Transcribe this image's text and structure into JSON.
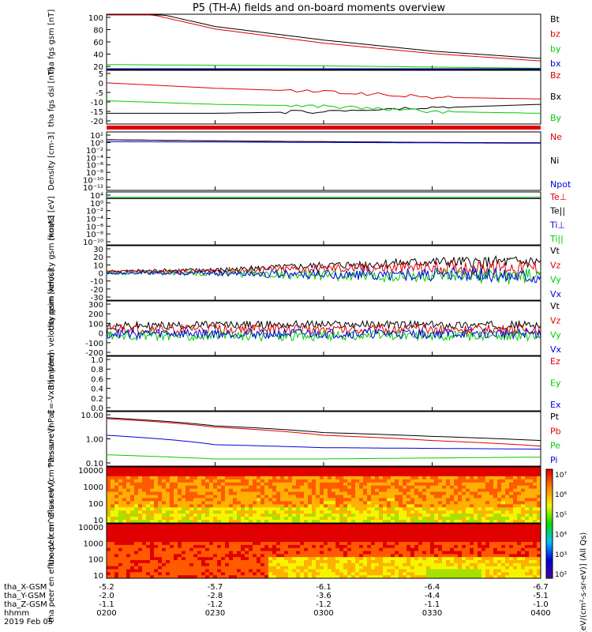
{
  "title": "P5 (TH-A) fields and on-board moments overview",
  "colors": {
    "black": "#000000",
    "red": "#e00000",
    "green": "#00cc00",
    "blue": "#0000e0"
  },
  "colorbar": {
    "ticks": [
      "10²",
      "10³",
      "10⁴",
      "10⁵",
      "10⁶",
      "10⁷"
    ],
    "label": "[eV/(cm²-s-sr-eV)] (All Qs)"
  },
  "footer": {
    "rows": [
      {
        "label": "tha_X-GSM",
        "values": [
          "-5.2",
          "-5.7",
          "-6.1",
          "-6.4",
          "-6.7"
        ]
      },
      {
        "label": "tha_Y-GSM",
        "values": [
          "-2.0",
          "-2.8",
          "-3.6",
          "-4.4",
          "-5.1"
        ]
      },
      {
        "label": "tha_Z-GSM",
        "values": [
          "-1.1",
          "-1.2",
          "-1.2",
          "-1.1",
          "-1.0"
        ]
      },
      {
        "label": "hhmm",
        "values": [
          "0200",
          "0230",
          "0300",
          "0330",
          "0400"
        ]
      }
    ],
    "date": "2019 Feb 05"
  },
  "chart_data": [
    {
      "type": "line",
      "ylabel": "tha fgs gsm [nT]",
      "ylim": [
        10,
        100
      ],
      "tick_labels": [
        "100",
        "80",
        "60",
        "40",
        "20"
      ],
      "x": [
        "0200",
        "0230",
        "0300",
        "0330",
        "0400"
      ],
      "series": [
        {
          "name": "Bt",
          "color": "black",
          "values": [
            120,
            80,
            58,
            40,
            28
          ]
        },
        {
          "name": "bz",
          "color": "red",
          "values": [
            116,
            76,
            53,
            36,
            24
          ]
        },
        {
          "name": "by",
          "color": "green",
          "values": [
            18,
            17,
            16,
            14,
            12
          ]
        },
        {
          "name": "bx",
          "color": "blue",
          "values": [
            8,
            8,
            8,
            8,
            8
          ]
        }
      ]
    },
    {
      "type": "line",
      "ylabel": "tha fgs dsl [nT]",
      "ylim": [
        -22,
        8
      ],
      "tick_labels": [
        "5",
        "0",
        "-5",
        "-10",
        "-15",
        "-20"
      ],
      "x": [
        "0200",
        "0230",
        "0300",
        "0330",
        "0400"
      ],
      "series": [
        {
          "name": "Bz",
          "color": "red",
          "values": [
            1,
            -2,
            -4,
            -7,
            -8
          ]
        },
        {
          "name": "Bx",
          "color": "black",
          "values": [
            -16,
            -16,
            -15,
            -13,
            -11
          ]
        },
        {
          "name": "By",
          "color": "green",
          "values": [
            -9,
            -11,
            -12,
            -15,
            -16
          ]
        }
      ]
    },
    {
      "type": "line",
      "ylabel": "Density [cm-3]",
      "ylim": [
        -12,
        3
      ],
      "tick_labels": [
        "10²",
        "10⁰",
        "10⁻²",
        "10⁻⁴",
        "10⁻⁶",
        "10⁻⁸",
        "10⁻¹⁰",
        "10⁻¹²"
      ],
      "series": [
        {
          "name": "Ne",
          "color": "red",
          "values": [
            1,
            0.7,
            0.5,
            0.3,
            0.2
          ]
        },
        {
          "name": "Ni",
          "color": "black",
          "values": [
            1,
            0.7,
            0.5,
            0.3,
            0.2
          ]
        },
        {
          "name": "Npot",
          "color": "blue",
          "values": [
            0.5,
            0.4,
            0.3,
            0.2,
            0.1
          ]
        }
      ]
    },
    {
      "type": "line",
      "ylabel": "moat3 [eV]",
      "ylim": [
        -11,
        5
      ],
      "tick_labels": [
        "10⁴",
        "10⁰",
        "10⁻²",
        "10⁻⁴",
        "10⁻⁶",
        "10⁻⁸",
        "10⁻¹⁰"
      ],
      "series": [
        {
          "name": "Te⊥",
          "color": "red",
          "values": [
            3,
            3,
            3,
            3,
            3
          ]
        },
        {
          "name": "Te||",
          "color": "black",
          "values": [
            3,
            3,
            3,
            3,
            3
          ]
        },
        {
          "name": "Ti⊥",
          "color": "blue",
          "values": [
            3.4,
            3.4,
            3.4,
            3.4,
            3.4
          ]
        },
        {
          "name": "Ti||",
          "color": "green",
          "values": [
            3.4,
            3.4,
            3.4,
            3.4,
            3.4
          ]
        }
      ]
    },
    {
      "type": "line",
      "ylabel": "tha peim velocity gsm [km/s]",
      "ylim": [
        -30,
        30
      ],
      "tick_labels": [
        "30",
        "20",
        "10",
        "0",
        "-10",
        "-20",
        "-30"
      ],
      "series": [
        {
          "name": "Vt",
          "color": "black",
          "values": [
            2,
            3,
            8,
            12,
            12
          ]
        },
        {
          "name": "Vz",
          "color": "red",
          "values": [
            1,
            2,
            5,
            6,
            6
          ]
        },
        {
          "name": "Vy",
          "color": "green",
          "values": [
            0,
            0,
            -3,
            -4,
            -4
          ]
        },
        {
          "name": "Vx",
          "color": "blue",
          "values": [
            0,
            0,
            -2,
            -2,
            -2
          ]
        }
      ]
    },
    {
      "type": "line",
      "ylabel": "tha peem velocity gsm [km/s]",
      "ylim": [
        -200,
        300
      ],
      "tick_labels": [
        "300",
        "200",
        "100",
        "0",
        "-100",
        "-200"
      ],
      "series": [
        {
          "name": "Vt",
          "color": "black",
          "values": [
            70,
            80,
            85,
            80,
            80
          ]
        },
        {
          "name": "Vz",
          "color": "red",
          "values": [
            40,
            40,
            40,
            40,
            40
          ]
        },
        {
          "name": "Vy",
          "color": "green",
          "values": [
            -10,
            -20,
            -20,
            -20,
            -20
          ]
        },
        {
          "name": "Vx",
          "color": "blue",
          "values": [
            0,
            0,
            0,
            0,
            0
          ]
        }
      ]
    },
    {
      "type": "line",
      "ylabel": "E=-VxB [mV/m]",
      "ylim": [
        0,
        1
      ],
      "tick_labels": [
        "1.0",
        "0.8",
        "0.6",
        "0.4",
        "0.2",
        "0.0"
      ],
      "series": [
        {
          "name": "Ez",
          "color": "red",
          "values": []
        },
        {
          "name": "Ey",
          "color": "green",
          "values": []
        },
        {
          "name": "Ex",
          "color": "blue",
          "values": []
        }
      ]
    },
    {
      "type": "line",
      "ylabel": "Pressure [nPa]",
      "ylim": [
        0.05,
        10
      ],
      "yscale": "log",
      "tick_labels": [
        "10.00",
        "1.00",
        "0.10"
      ],
      "series": [
        {
          "name": "Pt",
          "color": "black",
          "values": [
            5.5,
            2.5,
            1.3,
            0.9,
            0.6
          ]
        },
        {
          "name": "Pb",
          "color": "red",
          "values": [
            5.0,
            2.2,
            1.0,
            0.6,
            0.35
          ]
        },
        {
          "name": "Pe",
          "color": "green",
          "values": [
            0.15,
            0.1,
            0.1,
            0.11,
            0.12
          ]
        },
        {
          "name": "Pi",
          "color": "blue",
          "values": [
            1.0,
            0.4,
            0.3,
            0.28,
            0.26
          ]
        }
      ]
    },
    {
      "type": "heatmap",
      "ylabel": "tha peir en eflux eV (cm^2-s-sr-eV)",
      "yscale": "log",
      "ylim": [
        7,
        20000
      ],
      "tick_labels": [
        "10000",
        "1000",
        "100",
        "10"
      ]
    },
    {
      "type": "heatmap",
      "ylabel": "tha peer en eflux eV (cm^2-s-sr-eV)",
      "yscale": "log",
      "ylim": [
        7,
        20000
      ],
      "tick_labels": [
        "10000",
        "1000",
        "100",
        "10"
      ]
    }
  ]
}
